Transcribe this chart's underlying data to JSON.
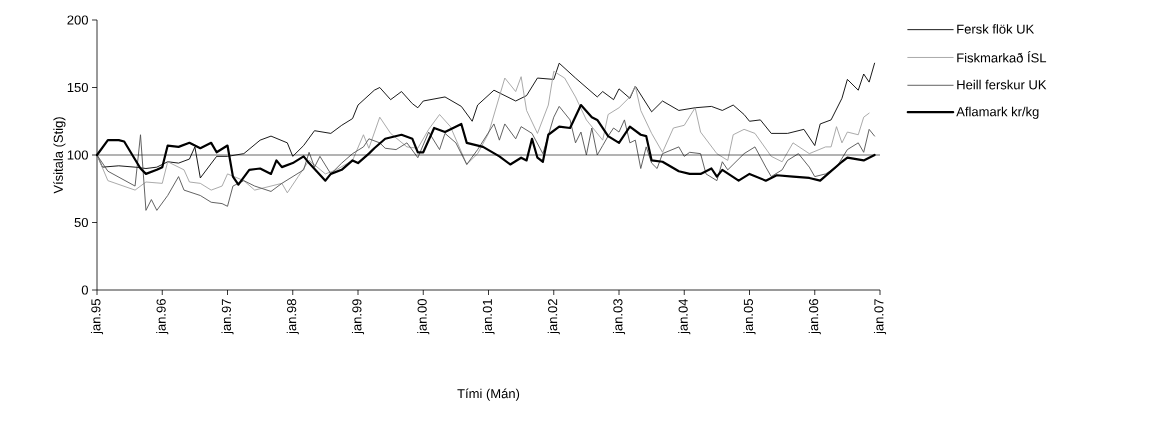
{
  "chart_data": {
    "type": "line",
    "xlabel": "Tími (Mán)",
    "ylabel": "Vísitala (Stig)",
    "xlim": [
      "1995-01",
      "2007-01"
    ],
    "ylim": [
      0,
      200
    ],
    "xticks": [
      {
        "value": "1995-01",
        "label": "jan.95"
      },
      {
        "value": "1996-01",
        "label": "jan.96"
      },
      {
        "value": "1997-01",
        "label": "jan.97"
      },
      {
        "value": "1998-01",
        "label": "jan.98"
      },
      {
        "value": "1999-01",
        "label": "jan.99"
      },
      {
        "value": "2000-01",
        "label": "jan.00"
      },
      {
        "value": "2001-01",
        "label": "jan.01"
      },
      {
        "value": "2002-01",
        "label": "jan.02"
      },
      {
        "value": "2003-01",
        "label": "jan.03"
      },
      {
        "value": "2004-01",
        "label": "jan.04"
      },
      {
        "value": "2005-01",
        "label": "jan.05"
      },
      {
        "value": "2006-01",
        "label": "jan.06"
      },
      {
        "value": "2007-01",
        "label": "jan.07"
      }
    ],
    "yticks": [
      0,
      50,
      100,
      150,
      200
    ],
    "legend": "right",
    "ref_lines": [
      {
        "axis": "y",
        "value": 100,
        "color": "#000000"
      }
    ],
    "series": [
      {
        "name": "Fersk flök UK",
        "color": "#000000",
        "x": [
          "1995-01",
          "1995-02",
          "1995-05",
          "1995-08",
          "1995-10",
          "1995-12",
          "1996-02",
          "1996-04",
          "1996-06",
          "1996-07",
          "1996-08",
          "1996-11",
          "1997-01",
          "1997-04",
          "1997-07",
          "1997-09",
          "1997-12",
          "1998-01",
          "1998-03",
          "1998-05",
          "1998-08",
          "1998-10",
          "1998-12",
          "1999-01",
          "1999-04",
          "1999-05",
          "1999-07",
          "1999-09",
          "1999-11",
          "1999-12",
          "2000-01",
          "2000-05",
          "2000-08",
          "2000-10",
          "2000-11",
          "2001-02",
          "2001-06",
          "2001-08",
          "2001-10",
          "2002-01",
          "2002-02",
          "2002-05",
          "2002-09",
          "2002-10",
          "2002-12",
          "2003-01",
          "2003-03",
          "2003-04",
          "2003-07",
          "2003-09",
          "2003-12",
          "2004-03",
          "2004-06",
          "2004-08",
          "2004-10",
          "2004-12",
          "2005-01",
          "2005-03",
          "2005-05",
          "2005-08",
          "2005-11",
          "2006-01",
          "2006-02",
          "2006-04",
          "2006-06",
          "2006-07",
          "2006-09",
          "2006-10",
          "2006-11",
          "2006-12"
        ],
        "values": [
          100,
          91,
          92,
          91,
          90,
          91,
          95,
          94,
          97,
          106,
          83,
          99,
          99,
          101,
          111,
          114,
          109,
          99,
          107,
          118,
          116,
          122,
          127,
          137,
          148,
          150,
          141,
          147,
          138,
          135,
          140,
          143,
          136,
          125,
          137,
          148,
          140,
          144,
          157,
          156,
          168,
          157,
          143,
          147,
          141,
          149,
          142,
          151,
          132,
          140,
          133,
          135,
          136,
          133,
          137,
          130,
          125,
          126,
          116,
          116,
          119,
          107,
          123,
          126,
          142,
          156,
          148,
          160,
          154,
          168
        ]
      },
      {
        "name": "Fiskmarkað ÍSL",
        "color": "#a0a0a0",
        "x": [
          "1995-01",
          "1995-03",
          "1995-08",
          "1995-10",
          "1996-01",
          "1996-02",
          "1996-05",
          "1996-06",
          "1996-08",
          "1996-10",
          "1996-12",
          "1997-01",
          "1997-04",
          "1997-06",
          "1997-09",
          "1997-11",
          "1997-12",
          "1998-02",
          "1998-04",
          "1998-07",
          "1998-09",
          "1998-12",
          "1999-02",
          "1999-03",
          "1999-05",
          "1999-07",
          "1999-10",
          "1999-12",
          "2000-02",
          "2000-04",
          "2000-06",
          "2000-09",
          "2000-11",
          "2001-01",
          "2001-04",
          "2001-06",
          "2001-07",
          "2001-08",
          "2001-10",
          "2001-12",
          "2002-01",
          "2002-03",
          "2002-05",
          "2002-07",
          "2002-10",
          "2002-11",
          "2003-01",
          "2003-03",
          "2003-04",
          "2003-05",
          "2003-07",
          "2003-09",
          "2003-10",
          "2003-11",
          "2004-01",
          "2004-03",
          "2004-04",
          "2004-07",
          "2004-09",
          "2004-10",
          "2004-12",
          "2005-02",
          "2005-05",
          "2005-07",
          "2005-09",
          "2005-12",
          "2006-03",
          "2006-04",
          "2006-05",
          "2006-06",
          "2006-07",
          "2006-09",
          "2006-10",
          "2006-11"
        ],
        "values": [
          100,
          81,
          74,
          80,
          79,
          95,
          89,
          80,
          79,
          74,
          77,
          86,
          81,
          74,
          77,
          79,
          72,
          84,
          96,
          86,
          89,
          96,
          115,
          105,
          128,
          116,
          106,
          105,
          119,
          130,
          121,
          93,
          101,
          116,
          157,
          147,
          158,
          133,
          116,
          137,
          162,
          157,
          143,
          126,
          111,
          130,
          135,
          143,
          151,
          133,
          116,
          102,
          111,
          120,
          122,
          135,
          117,
          101,
          96,
          115,
          119,
          116,
          99,
          95,
          109,
          101,
          106,
          106,
          121,
          109,
          117,
          115,
          128,
          131
        ]
      },
      {
        "name": "Heill ferskur UK",
        "color": "#505050",
        "x": [
          "1995-01",
          "1995-03",
          "1995-08",
          "1995-09",
          "1995-10",
          "1995-11",
          "1995-12",
          "1996-02",
          "1996-04",
          "1996-05",
          "1996-08",
          "1996-10",
          "1996-12",
          "1997-01",
          "1997-02",
          "1997-04",
          "1997-06",
          "1997-09",
          "1997-11",
          "1998-01",
          "1998-03",
          "1998-04",
          "1998-05",
          "1998-06",
          "1998-08",
          "1998-10",
          "1998-12",
          "1999-02",
          "1999-03",
          "1999-05",
          "1999-06",
          "1999-08",
          "1999-10",
          "1999-12",
          "2000-02",
          "2000-04",
          "2000-05",
          "2000-07",
          "2000-09",
          "2000-11",
          "2001-02",
          "2001-03",
          "2001-04",
          "2001-06",
          "2001-07",
          "2001-09",
          "2001-11",
          "2002-01",
          "2002-02",
          "2002-04",
          "2002-05",
          "2002-06",
          "2002-07",
          "2002-08",
          "2002-09",
          "2002-10",
          "2002-11",
          "2002-12",
          "2003-01",
          "2003-02",
          "2003-03",
          "2003-04",
          "2003-05",
          "2003-06",
          "2003-07",
          "2003-08",
          "2003-09",
          "2003-12",
          "2004-01",
          "2004-02",
          "2004-04",
          "2004-05",
          "2004-07",
          "2004-08",
          "2004-09",
          "2004-12",
          "2005-02",
          "2005-04",
          "2005-05",
          "2005-07",
          "2005-08",
          "2005-10",
          "2005-12",
          "2006-01",
          "2006-03",
          "2006-05",
          "2006-07",
          "2006-09",
          "2006-10",
          "2006-11",
          "2006-12"
        ],
        "values": [
          100,
          88,
          77,
          115,
          59,
          67,
          59,
          70,
          84,
          74,
          70,
          65,
          64,
          62,
          77,
          81,
          77,
          73,
          79,
          84,
          89,
          102,
          91,
          99,
          86,
          94,
          101,
          106,
          112,
          109,
          105,
          104,
          109,
          98,
          117,
          104,
          116,
          109,
          93,
          104,
          123,
          111,
          123,
          112,
          121,
          116,
          101,
          128,
          136,
          126,
          109,
          117,
          100,
          120,
          100,
          107,
          114,
          120,
          117,
          126,
          109,
          111,
          90,
          106,
          94,
          90,
          101,
          106,
          99,
          102,
          101,
          86,
          81,
          95,
          89,
          101,
          106,
          91,
          84,
          89,
          96,
          101,
          91,
          84,
          86,
          91,
          104,
          109,
          102,
          119,
          114
        ]
      },
      {
        "name": "Aflamark kr/kg",
        "color": "#000000",
        "x": [
          "1995-01",
          "1995-03",
          "1995-05",
          "1995-06",
          "1995-09",
          "1995-10",
          "1995-12",
          "1996-01",
          "1996-02",
          "1996-04",
          "1996-06",
          "1996-08",
          "1996-10",
          "1996-11",
          "1997-01",
          "1997-02",
          "1997-03",
          "1997-05",
          "1997-07",
          "1997-09",
          "1997-10",
          "1997-11",
          "1998-01",
          "1998-03",
          "1998-04",
          "1998-07",
          "1998-08",
          "1998-10",
          "1998-12",
          "1999-01",
          "1999-03",
          "1999-04",
          "1999-06",
          "1999-09",
          "1999-11",
          "1999-12",
          "2000-01",
          "2000-03",
          "2000-05",
          "2000-08",
          "2000-09",
          "2000-12",
          "2001-03",
          "2001-05",
          "2001-07",
          "2001-08",
          "2001-09",
          "2001-10",
          "2001-11",
          "2001-12",
          "2002-02",
          "2002-04",
          "2002-06",
          "2002-08",
          "2002-09",
          "2002-11",
          "2003-01",
          "2003-03",
          "2003-05",
          "2003-06",
          "2003-07",
          "2003-09",
          "2003-12",
          "2004-02",
          "2004-04",
          "2004-06",
          "2004-07",
          "2004-08",
          "2004-11",
          "2005-01",
          "2005-04",
          "2005-06",
          "2005-09",
          "2005-12",
          "2006-02",
          "2006-04",
          "2006-06",
          "2006-07",
          "2006-10",
          "2006-12"
        ],
        "values": [
          100,
          111,
          111,
          110,
          90,
          86,
          89,
          91,
          107,
          106,
          109,
          105,
          109,
          102,
          107,
          84,
          78,
          89,
          90,
          86,
          96,
          91,
          94,
          99,
          94,
          81,
          86,
          89,
          96,
          94,
          101,
          105,
          112,
          115,
          112,
          102,
          102,
          120,
          117,
          123,
          109,
          106,
          99,
          93,
          98,
          96,
          112,
          98,
          95,
          115,
          121,
          120,
          137,
          128,
          126,
          114,
          109,
          121,
          115,
          114,
          96,
          95,
          88,
          86,
          86,
          90,
          84,
          89,
          81,
          86,
          81,
          85,
          84,
          83,
          81,
          88,
          95,
          98,
          96,
          100
        ]
      }
    ]
  }
}
